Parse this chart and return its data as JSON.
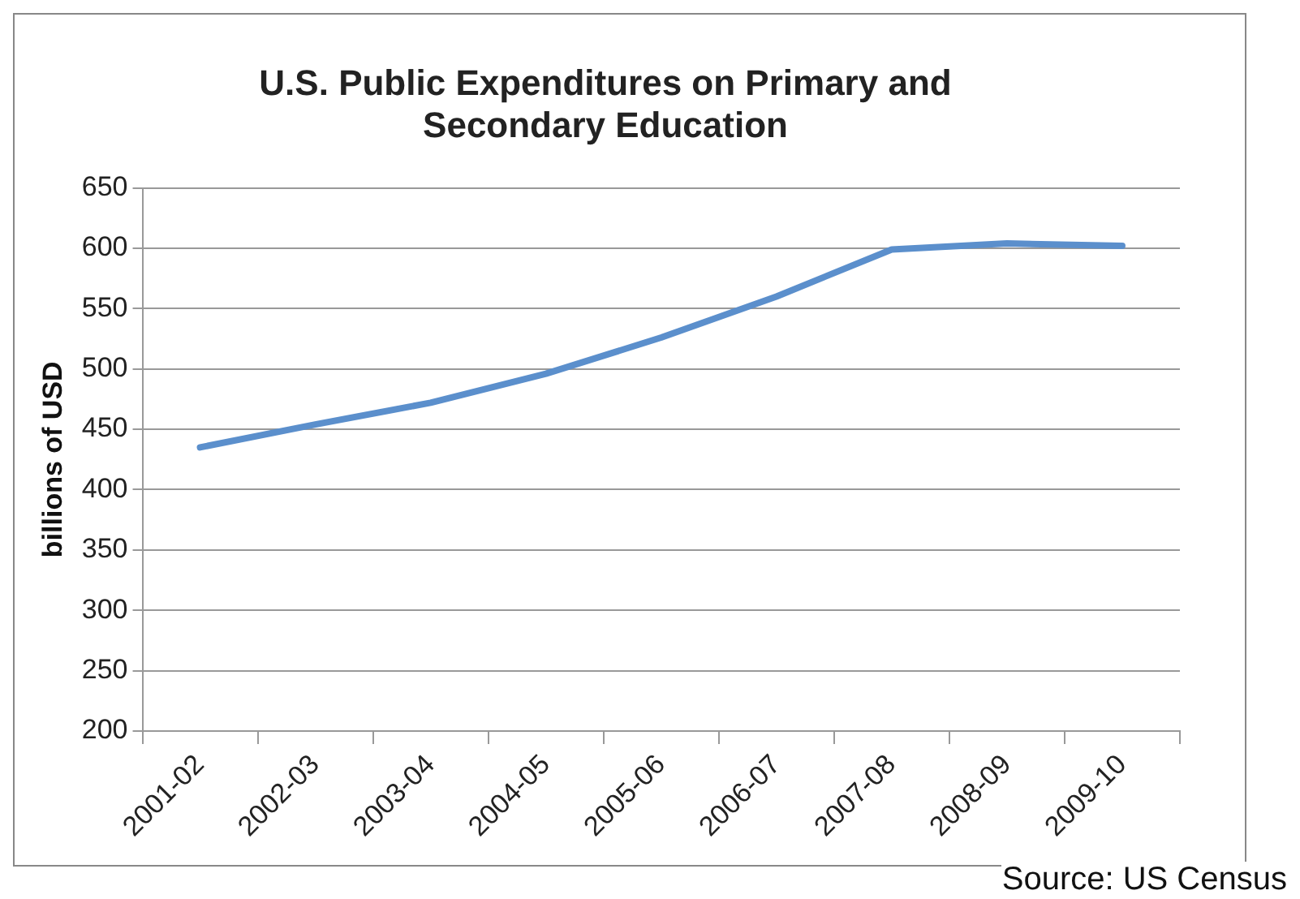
{
  "chart_data": {
    "type": "line",
    "title": [
      "U.S. Public Expenditures on Primary and",
      "Secondary Education"
    ],
    "ylabel": "billions of USD",
    "categories": [
      "2001-02",
      "2002-03",
      "2003-04",
      "2004-05",
      "2005-06",
      "2006-07",
      "2007-08",
      "2008-09",
      "2009-10"
    ],
    "series": [
      {
        "color": "#5b8fcc",
        "values": [
          435,
          454,
          472,
          496,
          526,
          560,
          599,
          604,
          602
        ]
      }
    ],
    "ylim": [
      200,
      650
    ],
    "yticks": [
      200,
      250,
      300,
      350,
      400,
      450,
      500,
      550,
      600,
      650
    ],
    "grid": "y",
    "legend": false,
    "marker": "none",
    "line_style": "solid",
    "annotations": [
      "Source: US Census"
    ]
  }
}
